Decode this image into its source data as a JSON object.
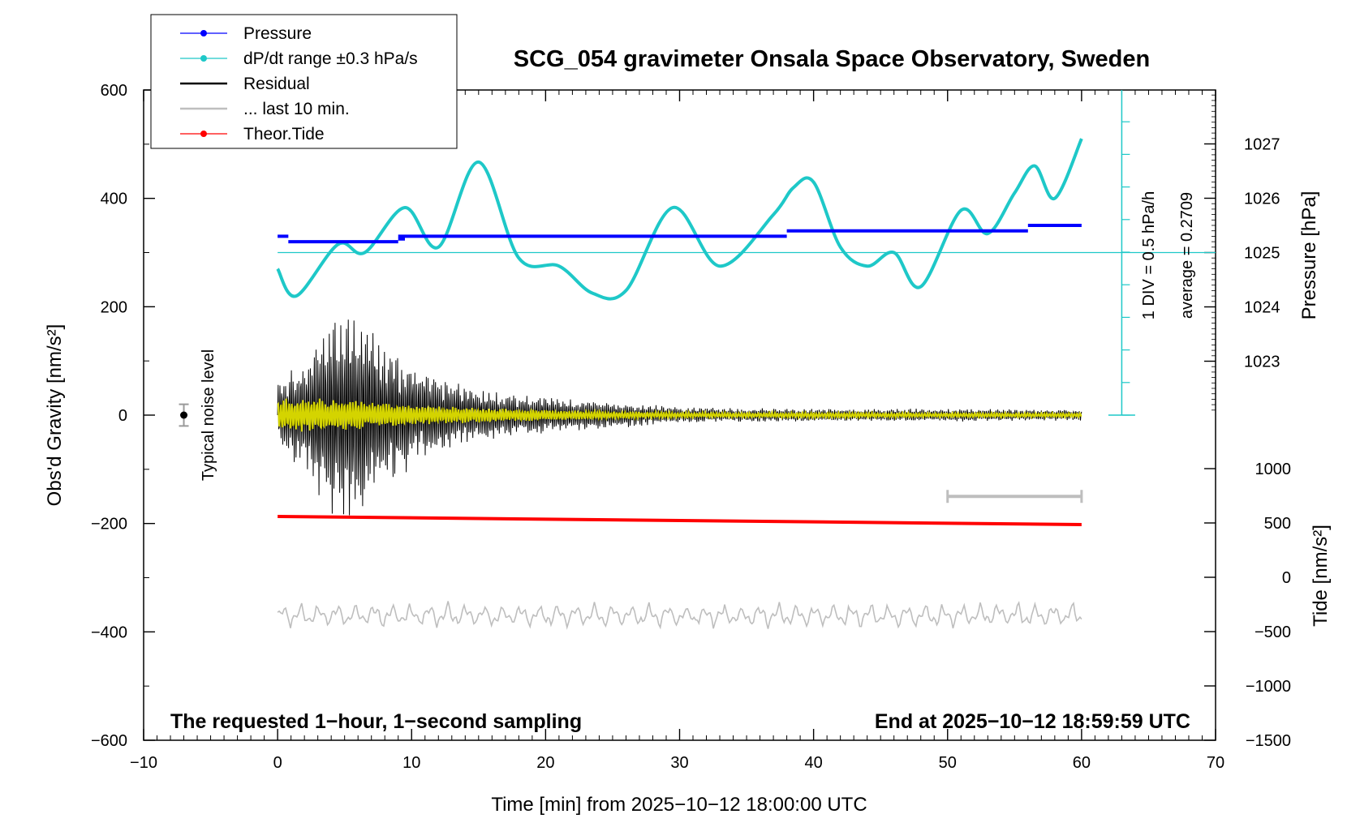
{
  "chart_data": {
    "type": "line",
    "title": "SCG_054 gravimeter Onsala Space Observatory, Sweden",
    "xlabel": "Time [min] from 2025−10−12 18:00:00 UTC",
    "ylabel_left": "Obs'd Gravity [nm/s²]",
    "ylabel_pressure": "Pressure [hPa]",
    "ylabel_tide": "Tide [nm/s²]",
    "xlim": [
      -10,
      70
    ],
    "ylim": [
      -600,
      600
    ],
    "x_ticks": [
      -10,
      0,
      10,
      20,
      30,
      40,
      50,
      60,
      70
    ],
    "x_tick_labels": [
      "−10",
      "0",
      "10",
      "20",
      "30",
      "40",
      "50",
      "60",
      "70"
    ],
    "y_ticks": [
      -600,
      -400,
      -200,
      0,
      200,
      400,
      600
    ],
    "y_tick_labels": [
      "−600",
      "−400",
      "−200",
      "0",
      "200",
      "400",
      "600"
    ],
    "pressure_axis": {
      "ticks": [
        1023,
        1024,
        1025,
        1026,
        1027
      ],
      "tick_labels": [
        "1023",
        "1024",
        "1025",
        "1026",
        "1027"
      ],
      "range": [
        1022,
        1028
      ]
    },
    "tide_axis": {
      "ticks": [
        -1500,
        -1000,
        -500,
        0,
        500,
        1000
      ],
      "tick_labels": [
        "−1500",
        "−1000",
        "−500",
        "0",
        "500",
        "1000"
      ],
      "range": [
        -1500,
        1500
      ]
    },
    "legend": [
      {
        "label": "Pressure",
        "color": "#0000ff",
        "marker": true
      },
      {
        "label": "dP/dt range ±0.3 hPa/s",
        "color": "#1ec8c8",
        "marker": true
      },
      {
        "label": "Residual",
        "color": "#000000",
        "marker": false
      },
      {
        "label": "... last 10 min.",
        "color": "#bebebe",
        "marker": false
      },
      {
        "label": "Theor.Tide",
        "color": "#ff0000",
        "marker": true
      }
    ],
    "series": [
      {
        "name": "Pressure",
        "axis": "pressure",
        "segments": [
          {
            "x": [
              0,
              0.8
            ],
            "y": 1025.3
          },
          {
            "x": [
              0.8,
              9.0
            ],
            "y": 1025.2
          },
          {
            "x": [
              9.0,
              9.5
            ],
            "y": 1025.25
          },
          {
            "x": [
              9.0,
              38.0
            ],
            "y": 1025.3
          },
          {
            "x": [
              38.0,
              56.0
            ],
            "y": 1025.4
          },
          {
            "x": [
              56.0,
              60.0
            ],
            "y": 1025.5
          }
        ]
      },
      {
        "name": "dP/dt range ±0.3 hPa/s",
        "axis": "left",
        "x": [
          0,
          1.4,
          4.5,
          6.5,
          9.5,
          12,
          15,
          18,
          21,
          23.5,
          26,
          29.5,
          33,
          37,
          38.5,
          40,
          42,
          44,
          46,
          48,
          51,
          53,
          55,
          56.5,
          58,
          60
        ],
        "y": [
          270,
          220,
          315,
          300,
          383,
          310,
          467,
          290,
          275,
          225,
          230,
          383,
          275,
          370,
          420,
          430,
          310,
          275,
          300,
          237,
          378,
          335,
          410,
          460,
          400,
          510
        ]
      },
      {
        "name": "Residual",
        "axis": "left",
        "x_range": [
          0,
          60
        ],
        "envelope": {
          "x": [
            0,
            2,
            4,
            6,
            8,
            10,
            12,
            15,
            20,
            25,
            30,
            40,
            50,
            60
          ],
          "amplitude": [
            60,
            110,
            190,
            200,
            130,
            100,
            70,
            50,
            35,
            25,
            15,
            12,
            12,
            10
          ]
        }
      },
      {
        "name": "... last 10 min.",
        "axis": "left",
        "x_range": [
          0,
          60
        ],
        "offset": -370,
        "amplitude": 25
      },
      {
        "name": "Theor.Tide",
        "axis": "left",
        "x": [
          0,
          60
        ],
        "y": [
          -187,
          -202
        ]
      },
      {
        "name": "Residual filtered",
        "axis": "left",
        "color": "#d4d400",
        "x_range": [
          0,
          60
        ],
        "envelope": {
          "x": [
            0,
            5,
            10,
            20,
            30,
            60
          ],
          "amplitude": [
            35,
            30,
            18,
            10,
            5,
            4
          ]
        }
      }
    ],
    "reference_line": {
      "axis": "pressure",
      "y": 1025
    },
    "annotations": {
      "noise_label": "Typical noise level",
      "noise_point": {
        "x": -7,
        "y": 0,
        "err": 20
      },
      "bottom_left": "The requested 1−hour, 1−second sampling",
      "bottom_right": "End at 2025−10−12 18:59:59 UTC",
      "div_label": "1 DIV = 0.5 hPa/h",
      "average_label": "average = 0.2709",
      "last10_bar": {
        "x": [
          50,
          60
        ],
        "y": -150
      }
    }
  }
}
